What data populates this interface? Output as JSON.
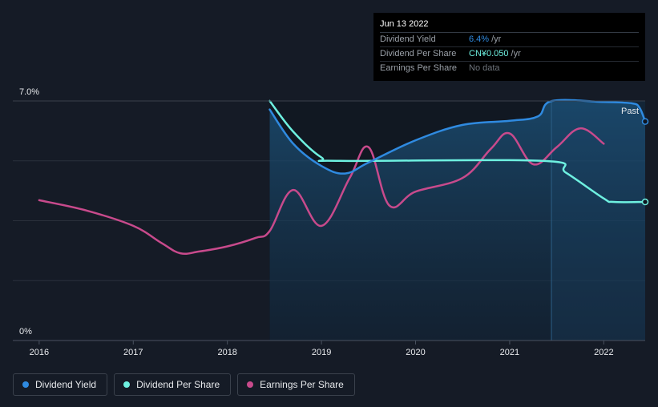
{
  "chart_data": {
    "type": "line",
    "title": "",
    "xlabel": "",
    "ylabel": "",
    "ylim": [
      0,
      7.0
    ],
    "y_tick_labels": [
      "7.0%",
      "0%"
    ],
    "x_ticks": [
      2016,
      2017,
      2018,
      2019,
      2020,
      2021,
      2022
    ],
    "xlim": [
      2015.72,
      2022.44
    ],
    "past_label": "Past",
    "series": [
      {
        "name": "Dividend Yield",
        "color": "#2f8ae0",
        "points": [
          [
            2018.45,
            6.75
          ],
          [
            2018.7,
            5.75
          ],
          [
            2019.0,
            5.1
          ],
          [
            2019.25,
            4.88
          ],
          [
            2019.5,
            5.2
          ],
          [
            2020.0,
            5.85
          ],
          [
            2020.5,
            6.3
          ],
          [
            2021.0,
            6.42
          ],
          [
            2021.3,
            6.55
          ],
          [
            2021.45,
            7.0
          ],
          [
            2022.0,
            6.97
          ],
          [
            2022.3,
            6.93
          ],
          [
            2022.38,
            6.8
          ],
          [
            2022.44,
            6.4
          ]
        ]
      },
      {
        "name": "Dividend Per Share",
        "color": "#6ef0e0",
        "points": [
          [
            2018.45,
            7.0
          ],
          [
            2018.7,
            6.1
          ],
          [
            2019.0,
            5.35
          ],
          [
            2019.2,
            5.25
          ],
          [
            2021.35,
            5.25
          ],
          [
            2021.6,
            4.9
          ],
          [
            2022.0,
            4.15
          ],
          [
            2022.1,
            4.05
          ],
          [
            2022.44,
            4.05
          ]
        ]
      },
      {
        "name": "Earnings Per Share",
        "color": "#c84a8c",
        "points": [
          [
            2016.0,
            4.1
          ],
          [
            2016.5,
            3.8
          ],
          [
            2017.0,
            3.35
          ],
          [
            2017.3,
            2.85
          ],
          [
            2017.5,
            2.55
          ],
          [
            2017.7,
            2.6
          ],
          [
            2018.0,
            2.75
          ],
          [
            2018.3,
            3.0
          ],
          [
            2018.45,
            3.2
          ],
          [
            2018.7,
            4.4
          ],
          [
            2019.0,
            3.35
          ],
          [
            2019.3,
            4.75
          ],
          [
            2019.5,
            5.65
          ],
          [
            2019.72,
            3.95
          ],
          [
            2020.0,
            4.35
          ],
          [
            2020.5,
            4.75
          ],
          [
            2020.8,
            5.6
          ],
          [
            2021.0,
            6.05
          ],
          [
            2021.25,
            5.15
          ],
          [
            2021.5,
            5.65
          ],
          [
            2021.75,
            6.2
          ],
          [
            2022.0,
            5.75
          ]
        ]
      }
    ],
    "legend": [
      "Dividend Yield",
      "Dividend Per Share",
      "Earnings Per Share"
    ]
  },
  "tooltip": {
    "date": "Jun 13 2022",
    "rows": [
      {
        "label": "Dividend Yield",
        "value": "6.4%",
        "unit": "/yr"
      },
      {
        "label": "Dividend Per Share",
        "value": "CN¥0.050",
        "unit": "/yr"
      },
      {
        "label": "Earnings Per Share",
        "value": "No data"
      }
    ]
  },
  "legend": {
    "items": [
      {
        "label": "Dividend Yield",
        "color": "#2f8ae0"
      },
      {
        "label": "Dividend Per Share",
        "color": "#6ef0e0"
      },
      {
        "label": "Earnings Per Share",
        "color": "#c84a8c"
      }
    ]
  }
}
